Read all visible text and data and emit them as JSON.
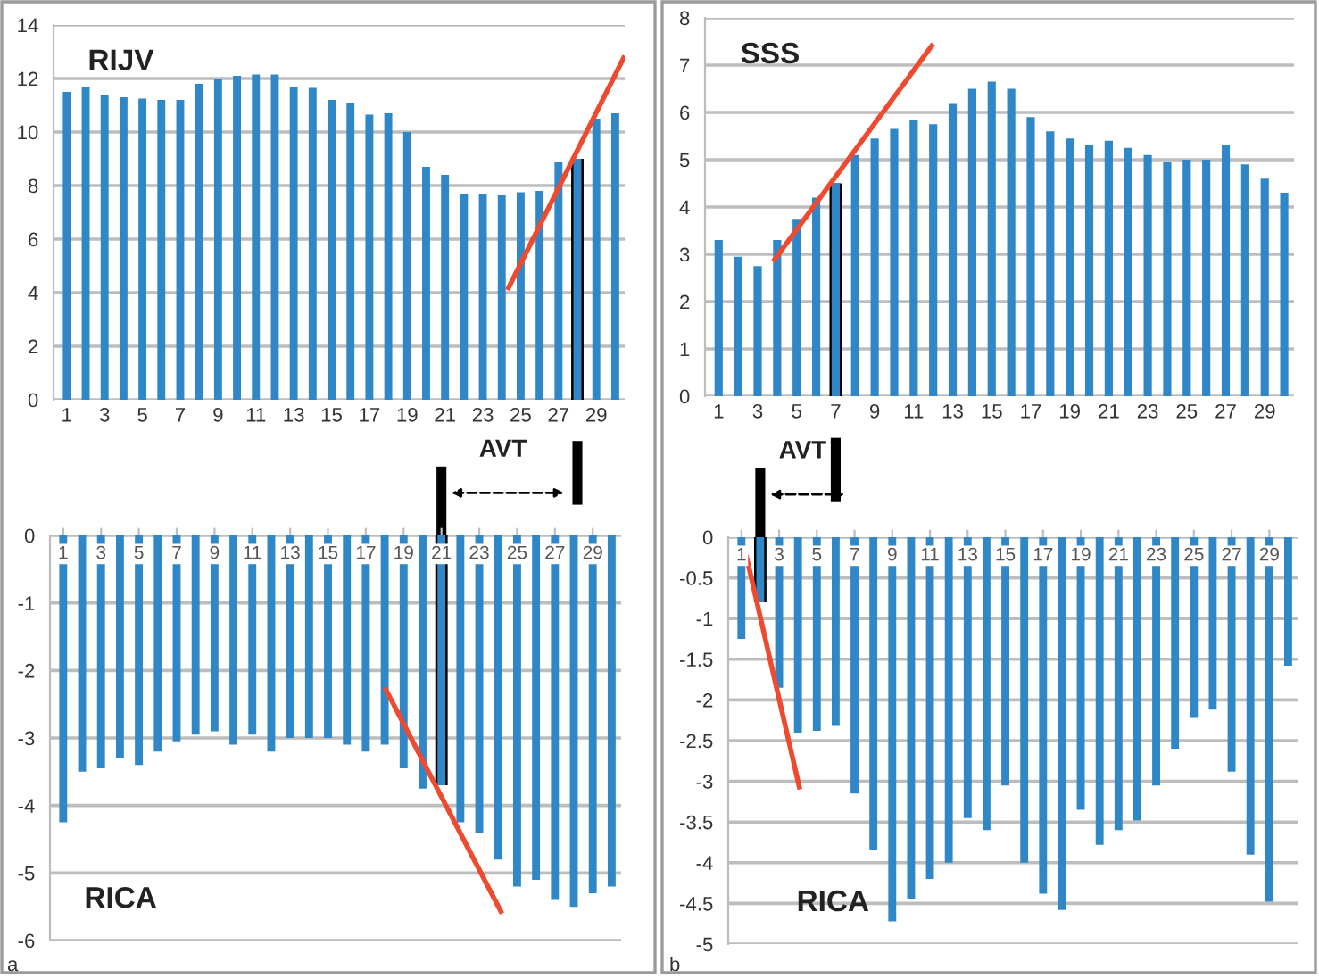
{
  "chart_data": [
    {
      "type": "bar",
      "title": "RIJV",
      "x": [
        1,
        2,
        3,
        4,
        5,
        6,
        7,
        8,
        9,
        10,
        11,
        12,
        13,
        14,
        15,
        16,
        17,
        18,
        19,
        20,
        21,
        22,
        23,
        24,
        25,
        26,
        27,
        28,
        29,
        30
      ],
      "xlim": [
        0.3,
        30.5
      ],
      "xticks": [
        1,
        3,
        5,
        7,
        9,
        11,
        13,
        15,
        17,
        19,
        21,
        23,
        25,
        27,
        29
      ],
      "ylim": [
        0,
        14
      ],
      "yticks": [
        0,
        2,
        4,
        6,
        8,
        10,
        12,
        14
      ],
      "grid": "y",
      "ref_lines": [
        {
          "axis": "x",
          "value": 28,
          "color": "#000000"
        }
      ],
      "series": [
        {
          "type": "bar",
          "color": "#2f87c8",
          "values": [
            11.5,
            11.7,
            11.4,
            11.3,
            11.25,
            11.2,
            11.2,
            11.8,
            12.0,
            12.1,
            12.15,
            12.15,
            11.7,
            11.65,
            11.2,
            11.1,
            10.65,
            10.7,
            10.0,
            8.7,
            8.4,
            7.7,
            7.7,
            7.65,
            7.75,
            7.8,
            8.9,
            9.0,
            10.5,
            10.7
          ]
        },
        {
          "type": "line",
          "color": "#ee4a30",
          "x": [
            24.3,
            30.5
          ],
          "values": [
            4.1,
            12.85
          ]
        }
      ]
    },
    {
      "type": "bar",
      "title": "SSS",
      "x": [
        1,
        2,
        3,
        4,
        5,
        6,
        7,
        8,
        9,
        10,
        11,
        12,
        13,
        14,
        15,
        16,
        17,
        18,
        19,
        20,
        21,
        22,
        23,
        24,
        25,
        26,
        27,
        28,
        29,
        30
      ],
      "xlim": [
        0.3,
        30.5
      ],
      "xticks": [
        1,
        3,
        5,
        7,
        9,
        11,
        13,
        15,
        17,
        19,
        21,
        23,
        25,
        27,
        29
      ],
      "ylim": [
        0,
        8
      ],
      "yticks": [
        0,
        1,
        2,
        3,
        4,
        5,
        6,
        7,
        8
      ],
      "grid": "y",
      "ref_lines": [
        {
          "axis": "x",
          "value": 7,
          "color": "#000000"
        }
      ],
      "series": [
        {
          "type": "bar",
          "color": "#2f87c8",
          "values": [
            3.3,
            2.95,
            2.75,
            3.3,
            3.75,
            4.2,
            4.5,
            5.1,
            5.45,
            5.65,
            5.85,
            5.75,
            6.2,
            6.5,
            6.65,
            6.5,
            5.9,
            5.6,
            5.45,
            5.3,
            5.4,
            5.25,
            5.1,
            4.95,
            5.0,
            5.0,
            5.3,
            4.9,
            4.6,
            4.3
          ]
        },
        {
          "type": "line",
          "color": "#ee4a30",
          "x": [
            3.8,
            12.0
          ],
          "values": [
            2.85,
            7.45
          ]
        }
      ]
    },
    {
      "type": "bar",
      "title": "RICA",
      "x": [
        1,
        2,
        3,
        4,
        5,
        6,
        7,
        8,
        9,
        10,
        11,
        12,
        13,
        14,
        15,
        16,
        17,
        18,
        19,
        20,
        21,
        22,
        23,
        24,
        25,
        26,
        27,
        28,
        29,
        30
      ],
      "xlim": [
        0.3,
        30.5
      ],
      "xticks": [
        1,
        3,
        5,
        7,
        9,
        11,
        13,
        15,
        17,
        19,
        21,
        23,
        25,
        27,
        29
      ],
      "ylim": [
        -6,
        0
      ],
      "yticks": [
        -6,
        -5,
        -4,
        -3,
        -2,
        -1,
        0
      ],
      "grid": "y",
      "ref_lines": [
        {
          "axis": "x",
          "value": 21,
          "color": "#000000"
        }
      ],
      "annotations": [
        "AVT",
        "a"
      ],
      "series": [
        {
          "type": "bar",
          "color": "#2f87c8",
          "values": [
            -4.25,
            -3.5,
            -3.45,
            -3.3,
            -3.4,
            -3.2,
            -3.05,
            -2.95,
            -2.9,
            -3.1,
            -2.95,
            -3.2,
            -3.0,
            -3.0,
            -3.0,
            -3.1,
            -3.2,
            -3.1,
            -3.45,
            -3.75,
            -3.7,
            -4.25,
            -4.4,
            -4.8,
            -5.2,
            -5.1,
            -5.4,
            -5.5,
            -5.3,
            -5.2
          ]
        },
        {
          "type": "line",
          "color": "#ee4a30",
          "x": [
            18.0,
            24.2
          ],
          "values": [
            -2.25,
            -5.6
          ]
        }
      ]
    },
    {
      "type": "bar",
      "title": "RICA",
      "x": [
        1,
        2,
        3,
        4,
        5,
        6,
        7,
        8,
        9,
        10,
        11,
        12,
        13,
        14,
        15,
        16,
        17,
        18,
        19,
        20,
        21,
        22,
        23,
        24,
        25,
        26,
        27,
        28,
        29,
        30
      ],
      "xlim": [
        0.3,
        30.5
      ],
      "xticks": [
        1,
        3,
        5,
        7,
        9,
        11,
        13,
        15,
        17,
        19,
        21,
        23,
        25,
        27,
        29
      ],
      "ylim": [
        -5,
        0
      ],
      "yticks": [
        -5,
        -4.5,
        -4,
        -3.5,
        -3,
        -2.5,
        -2,
        -1.5,
        -1,
        -0.5,
        0
      ],
      "grid": "y",
      "ref_lines": [
        {
          "axis": "x",
          "value": 2,
          "color": "#000000"
        }
      ],
      "annotations": [
        "AVT",
        "b"
      ],
      "series": [
        {
          "type": "bar",
          "color": "#2f87c8",
          "values": [
            -1.25,
            -0.8,
            -1.85,
            -2.4,
            -2.38,
            -2.32,
            -3.15,
            -3.85,
            -4.72,
            -4.45,
            -4.2,
            -4.0,
            -3.45,
            -3.6,
            -3.05,
            -4.0,
            -4.38,
            -4.58,
            -3.35,
            -3.78,
            -3.6,
            -3.48,
            -3.05,
            -2.6,
            -2.22,
            -2.12,
            -2.88,
            -3.9,
            -4.48,
            -1.58
          ]
        },
        {
          "type": "line",
          "color": "#ee4a30",
          "x": [
            1.25,
            4.1
          ],
          "values": [
            -0.22,
            -3.1
          ]
        }
      ]
    }
  ]
}
